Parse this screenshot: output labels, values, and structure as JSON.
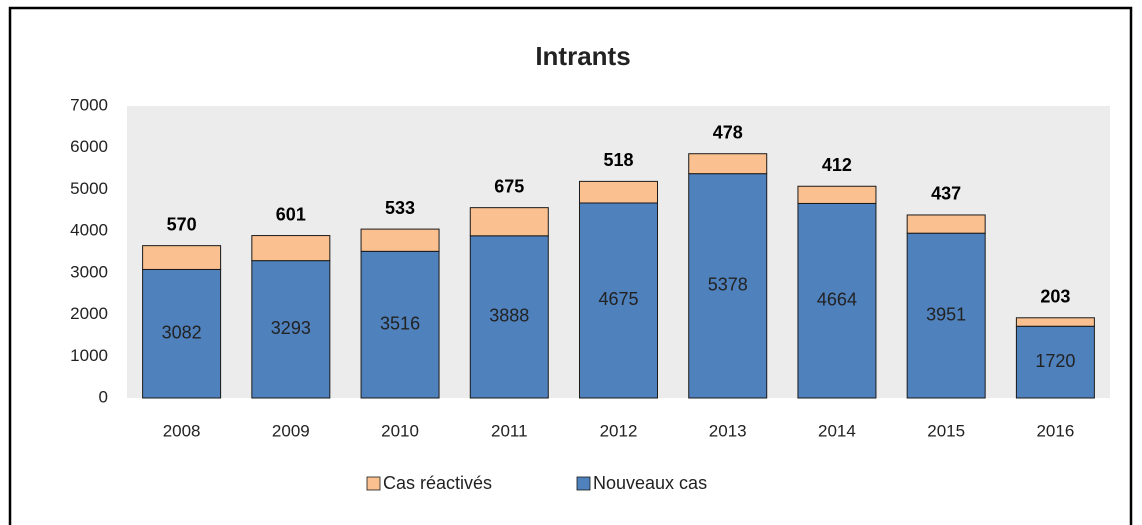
{
  "chart_data": {
    "type": "stacked_bar",
    "title": "Intrants",
    "categories": [
      "2008",
      "2009",
      "2010",
      "2011",
      "2012",
      "2013",
      "2014",
      "2015",
      "2016"
    ],
    "series": [
      {
        "name": "Nouveaux cas",
        "color": "#4f81bd",
        "values": [
          3082,
          3293,
          3516,
          3888,
          4675,
          5378,
          4664,
          3951,
          1720
        ]
      },
      {
        "name": "Cas réactivés",
        "color": "#fac090",
        "values": [
          570,
          601,
          533,
          675,
          518,
          478,
          412,
          437,
          203
        ]
      }
    ],
    "ylim": [
      0,
      7000
    ],
    "yticks": [
      0,
      1000,
      2000,
      3000,
      4000,
      5000,
      6000,
      7000
    ],
    "grid": false,
    "legend": "bottom"
  }
}
